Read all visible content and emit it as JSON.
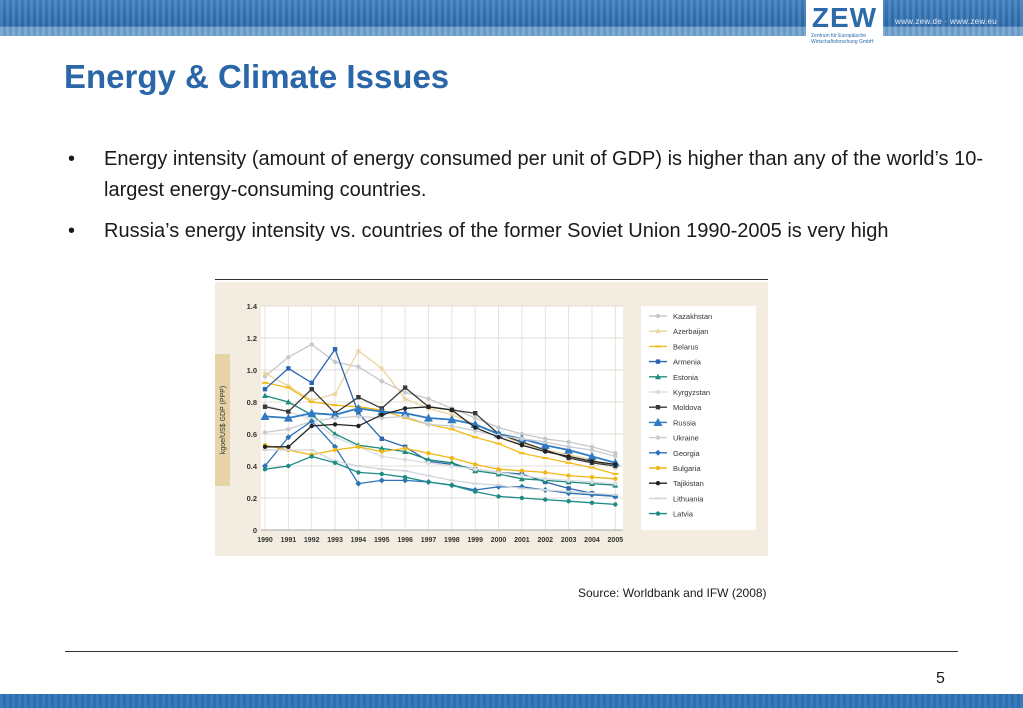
{
  "header": {
    "logo": "ZEW",
    "logo_sub": "Zentrum für Europäische Wirtschaftsforschung GmbH",
    "url": "www.zew.de · www.zew.eu"
  },
  "title": "Energy & Climate Issues",
  "bullets": [
    "Energy intensity (amount of energy consumed per unit of GDP) is higher than any of the world’s 10-largest energy-consuming countries.",
    "Russia’s energy intensity vs. countries of the former Soviet Union 1990-2005 is very high"
  ],
  "bullet_symbol": "•",
  "source": "Source: Worldbank and IFW (2008)",
  "page_number": "5",
  "colors": {
    "brand_blue": "#2a66a8",
    "chart_panel": "#f3ece0",
    "ylabel_strip": "#e6d3a8"
  },
  "chart_data": {
    "type": "line",
    "ylabel": "kgoe/US$ GDP (PPP)",
    "xlabel": "",
    "x": [
      1990,
      1991,
      1992,
      1993,
      1994,
      1995,
      1996,
      1997,
      1998,
      1999,
      2000,
      2001,
      2002,
      2003,
      2004,
      2005
    ],
    "ylim": [
      0,
      1.4
    ],
    "yticks": [
      "0",
      "0.2",
      "0.4",
      "0.6",
      "0.8",
      "1.0",
      "1.2",
      "1.4"
    ],
    "grid": true,
    "legend_position": "right",
    "series": [
      {
        "name": "Kazakhstan",
        "color": "#c6c9cc",
        "marker": "circle",
        "values": [
          0.96,
          1.08,
          1.16,
          1.05,
          1.02,
          0.93,
          0.86,
          0.82,
          0.76,
          0.7,
          0.64,
          0.6,
          0.57,
          0.55,
          0.52,
          0.48
        ]
      },
      {
        "name": "Azerbaijan",
        "color": "#e8d59f",
        "marker": "star",
        "values": [
          0.98,
          0.9,
          0.81,
          0.85,
          1.12,
          1.01,
          0.82,
          0.76,
          0.72,
          0.66,
          0.6,
          0.54,
          0.5,
          0.47,
          0.44,
          0.39
        ]
      },
      {
        "name": "Belarus",
        "color": "#f2bc1a",
        "marker": "dash",
        "values": [
          0.92,
          0.89,
          0.8,
          0.78,
          0.77,
          0.75,
          0.7,
          0.66,
          0.63,
          0.58,
          0.54,
          0.48,
          0.45,
          0.42,
          0.39,
          0.35
        ]
      },
      {
        "name": "Armenia",
        "color": "#2b66b0",
        "marker": "square",
        "values": [
          0.88,
          1.01,
          0.92,
          1.13,
          0.73,
          0.57,
          0.52,
          0.43,
          0.41,
          0.38,
          0.36,
          0.35,
          0.3,
          0.26,
          0.23,
          0.21
        ]
      },
      {
        "name": "Estonia",
        "color": "#1e8b7a",
        "marker": "triangle",
        "values": [
          0.84,
          0.8,
          0.72,
          0.6,
          0.53,
          0.51,
          0.49,
          0.44,
          0.42,
          0.37,
          0.35,
          0.32,
          0.31,
          0.3,
          0.29,
          0.28
        ]
      },
      {
        "name": "Kyrgyzstan",
        "color": "#d8dde3",
        "marker": "circle",
        "values": [
          0.78,
          0.74,
          0.69,
          0.58,
          0.52,
          0.46,
          0.44,
          0.42,
          0.4,
          0.38,
          0.36,
          0.34,
          0.32,
          0.31,
          0.3,
          0.29
        ]
      },
      {
        "name": "Moldova",
        "color": "#3a3a3a",
        "marker": "square",
        "values": [
          0.77,
          0.74,
          0.88,
          0.73,
          0.83,
          0.76,
          0.89,
          0.77,
          0.75,
          0.73,
          0.6,
          0.55,
          0.5,
          0.45,
          0.42,
          0.4
        ]
      },
      {
        "name": "Russia",
        "color": "#2f7ac2",
        "marker": "triangle",
        "values": [
          0.71,
          0.7,
          0.73,
          0.72,
          0.76,
          0.74,
          0.73,
          0.7,
          0.69,
          0.66,
          0.6,
          0.57,
          0.53,
          0.5,
          0.46,
          0.42
        ]
      },
      {
        "name": "Ukraine",
        "color": "#c8ccd2",
        "marker": "circle",
        "values": [
          0.61,
          0.63,
          0.68,
          0.7,
          0.71,
          0.7,
          0.71,
          0.66,
          0.65,
          0.62,
          0.59,
          0.57,
          0.55,
          0.52,
          0.5,
          0.46
        ]
      },
      {
        "name": "Georgia",
        "color": "#2c73b8",
        "marker": "diamond",
        "values": [
          0.4,
          0.58,
          0.68,
          0.52,
          0.29,
          0.31,
          0.31,
          0.3,
          0.28,
          0.25,
          0.27,
          0.27,
          0.25,
          0.23,
          0.22,
          0.21
        ]
      },
      {
        "name": "Bulgaria",
        "color": "#f0b719",
        "marker": "circle",
        "values": [
          0.53,
          0.5,
          0.47,
          0.5,
          0.52,
          0.49,
          0.51,
          0.48,
          0.45,
          0.41,
          0.38,
          0.37,
          0.36,
          0.34,
          0.33,
          0.32
        ]
      },
      {
        "name": "Tajikistan",
        "color": "#222222",
        "marker": "circle",
        "values": [
          0.52,
          0.52,
          0.65,
          0.66,
          0.65,
          0.72,
          0.76,
          0.77,
          0.75,
          0.64,
          0.58,
          0.53,
          0.49,
          0.46,
          0.43,
          0.41
        ]
      },
      {
        "name": "Lithuania",
        "color": "#d2d6db",
        "marker": "dash",
        "values": [
          0.5,
          0.5,
          0.5,
          0.43,
          0.4,
          0.38,
          0.37,
          0.34,
          0.31,
          0.29,
          0.28,
          0.26,
          0.25,
          0.24,
          0.23,
          0.22
        ]
      },
      {
        "name": "Latvia",
        "color": "#1e8c86",
        "marker": "circle",
        "values": [
          0.38,
          0.4,
          0.46,
          0.42,
          0.36,
          0.35,
          0.33,
          0.3,
          0.28,
          0.24,
          0.21,
          0.2,
          0.19,
          0.18,
          0.17,
          0.16
        ]
      }
    ]
  }
}
